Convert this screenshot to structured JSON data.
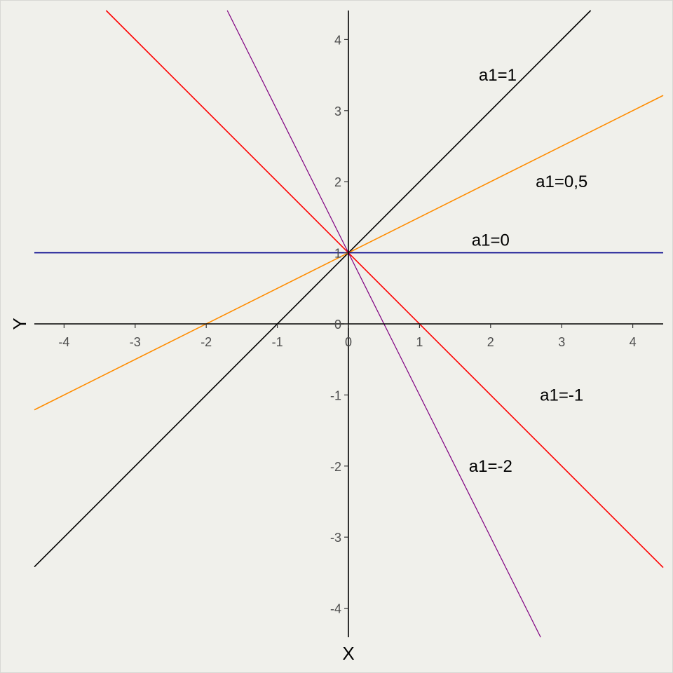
{
  "chart_data": {
    "type": "line",
    "title": "",
    "xlabel": "X",
    "ylabel": "Y",
    "xlim": [
      -4.5,
      4.5
    ],
    "ylim": [
      -4.5,
      4.5
    ],
    "x_ticks": [
      "-4",
      "-3",
      "-2",
      "-1",
      "0",
      "1",
      "2",
      "3",
      "4"
    ],
    "y_ticks": [
      "-4",
      "-3",
      "-2",
      "-1",
      "0",
      "1",
      "2",
      "3",
      "4"
    ],
    "grid": false,
    "legend": "none",
    "axis_color": "#000000",
    "background": "#f0f0eb",
    "series": [
      {
        "name": "a1=1",
        "intercept": 1,
        "slope": 1,
        "color": "#000000",
        "label_at": [
          2.1,
          3.5
        ]
      },
      {
        "name": "a1=0,5",
        "intercept": 1,
        "slope": 0.5,
        "color": "#ff8c00",
        "label_at": [
          3.0,
          2.0
        ]
      },
      {
        "name": "a1=0",
        "intercept": 1,
        "slope": 0,
        "color": "#00008b",
        "label_at": [
          2.0,
          1.18
        ]
      },
      {
        "name": "a1=-1",
        "intercept": 1,
        "slope": -1,
        "color": "#ff0000",
        "label_at": [
          3.0,
          -1.0
        ]
      },
      {
        "name": "a1=-2",
        "intercept": 1,
        "slope": -2,
        "color": "#800080",
        "label_at": [
          2.0,
          -2.0
        ]
      }
    ]
  }
}
